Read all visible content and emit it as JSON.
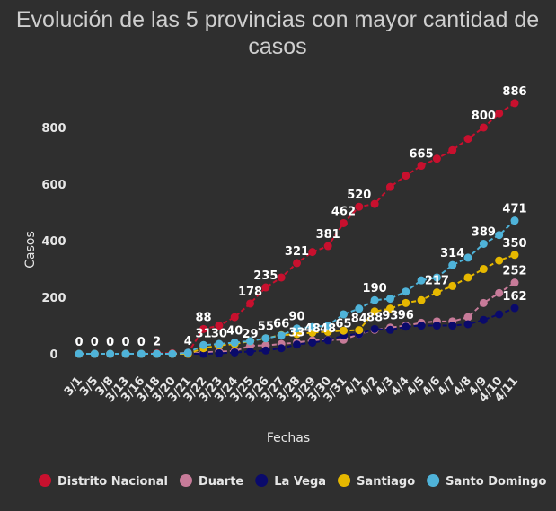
{
  "chart_data": {
    "type": "line",
    "title": "Evolución de las 5 provincias con mayor cantidad de casos",
    "x_label": "Fechas",
    "y_label": "Casos",
    "categories": [
      "3/1",
      "3/5",
      "3/8",
      "3/13",
      "3/16",
      "3/18",
      "3/20",
      "3/21",
      "3/22",
      "3/23",
      "3/24",
      "3/25",
      "3/26",
      "3/27",
      "3/28",
      "3/29",
      "3/30",
      "3/31",
      "4/1",
      "4/2",
      "4/3",
      "4/4",
      "4/5",
      "4/6",
      "4/7",
      "4/8",
      "4/9",
      "4/10",
      "4/11"
    ],
    "ylim": [
      -30,
      900
    ],
    "yticks": [
      0,
      200,
      400,
      600,
      800
    ],
    "legend": "bottom",
    "series": [
      {
        "name": "Distrito Nacional",
        "color": "#c8102e",
        "values": [
          0,
          0,
          0,
          0,
          0,
          2,
          2,
          4,
          88,
          100,
          130,
          178,
          235,
          270,
          321,
          360,
          381,
          462,
          520,
          530,
          590,
          630,
          665,
          690,
          720,
          760,
          800,
          850,
          886
        ],
        "value_labels": [
          "0",
          "0",
          "0",
          "0",
          "0",
          "2",
          null,
          null,
          "88",
          null,
          null,
          "178",
          "235",
          null,
          "321",
          null,
          "381",
          "462",
          "520",
          null,
          null,
          null,
          "665",
          null,
          null,
          null,
          "800",
          null,
          "886"
        ]
      },
      {
        "name": "Duarte",
        "color": "#c77b99",
        "values": [
          0,
          0,
          0,
          0,
          0,
          0,
          0,
          0,
          5,
          8,
          10,
          29,
          30,
          35,
          40,
          48,
          49,
          50,
          70,
          85,
          93,
          100,
          110,
          115,
          115,
          130,
          180,
          215,
          252
        ],
        "value_labels": [
          null,
          null,
          null,
          null,
          null,
          null,
          null,
          null,
          null,
          null,
          null,
          "29",
          null,
          null,
          null,
          "48",
          null,
          null,
          null,
          null,
          "93",
          null,
          null,
          null,
          null,
          null,
          null,
          null,
          "252"
        ]
      },
      {
        "name": "La Vega",
        "color": "#0a0a6b",
        "values": [
          0,
          0,
          0,
          0,
          0,
          0,
          0,
          0,
          0,
          2,
          5,
          8,
          12,
          20,
          33,
          40,
          48,
          65,
          70,
          88,
          85,
          96,
          100,
          100,
          100,
          105,
          120,
          140,
          162
        ],
        "value_labels": [
          null,
          null,
          null,
          null,
          null,
          null,
          null,
          null,
          null,
          null,
          null,
          null,
          null,
          null,
          "33",
          null,
          "48",
          "65",
          null,
          "88",
          null,
          "96",
          null,
          null,
          null,
          null,
          null,
          null,
          "162"
        ]
      },
      {
        "name": "Santiago",
        "color": "#e6b800",
        "values": [
          0,
          0,
          0,
          0,
          0,
          0,
          0,
          0,
          20,
          30,
          35,
          45,
          55,
          66,
          70,
          75,
          78,
          82,
          84,
          150,
          160,
          180,
          190,
          217,
          240,
          270,
          300,
          330,
          350
        ],
        "value_labels": [
          null,
          null,
          null,
          null,
          null,
          null,
          null,
          null,
          null,
          "30",
          null,
          null,
          null,
          "66",
          null,
          null,
          null,
          null,
          "84",
          null,
          null,
          null,
          null,
          "217",
          null,
          null,
          null,
          null,
          "350"
        ]
      },
      {
        "name": "Santo Domingo",
        "color": "#4fb3d9",
        "values": [
          0,
          0,
          0,
          0,
          0,
          0,
          0,
          4,
          31,
          35,
          40,
          45,
          55,
          65,
          90,
          95,
          100,
          140,
          160,
          190,
          195,
          220,
          260,
          270,
          314,
          340,
          389,
          420,
          471
        ],
        "value_labels": [
          null,
          null,
          null,
          null,
          null,
          null,
          null,
          "4",
          "31",
          null,
          "40",
          null,
          "55",
          null,
          "90",
          null,
          null,
          null,
          null,
          "190",
          null,
          null,
          null,
          null,
          "314",
          null,
          "389",
          null,
          "471"
        ]
      }
    ]
  }
}
